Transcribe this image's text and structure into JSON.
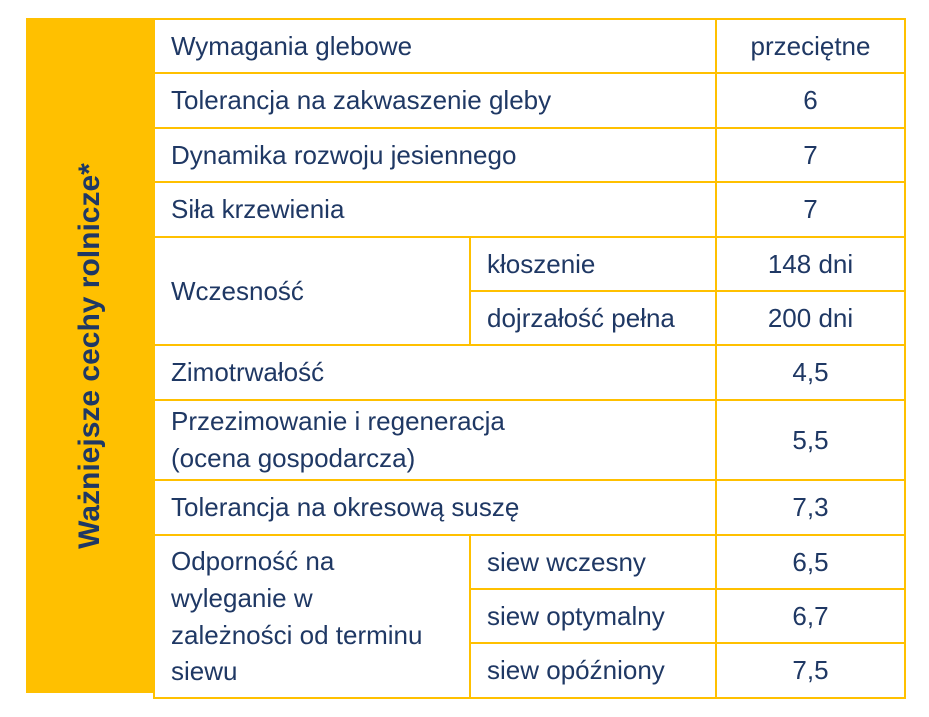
{
  "side_title": "Ważniejsze cechy rolnicze*",
  "rows": {
    "soil": {
      "label": "Wymagania glebowe",
      "value": "przeciętne"
    },
    "acid": {
      "label": "Tolerancja na zakwaszenie gleby",
      "value": "6"
    },
    "autumn": {
      "label": "Dynamika rozwoju jesiennego",
      "value": "7"
    },
    "tiller": {
      "label": "Siła krzewienia",
      "value": "7"
    },
    "earliness": {
      "label": "Wczesność",
      "sub": [
        {
          "label": "kłoszenie",
          "value": "148 dni"
        },
        {
          "label": "dojrzałość pełna",
          "value": "200 dni"
        }
      ]
    },
    "winter": {
      "label": "Zimotrwałość",
      "value": "4,5"
    },
    "overwinter": {
      "label_line1": "Przezimowanie i regeneracja",
      "label_line2": "(ocena gospodarcza)",
      "value": "5,5"
    },
    "drought": {
      "label": "Tolerancja na okresową suszę",
      "value": "7,3"
    },
    "lodging": {
      "label_lines": [
        "Odporność na",
        "wyleganie w",
        "zależności od terminu",
        "siewu"
      ],
      "sub": [
        {
          "label": "siew wczesny",
          "value": "6,5"
        },
        {
          "label": "siew optymalny",
          "value": "6,7"
        },
        {
          "label": "siew opóźniony",
          "value": "7,5"
        }
      ]
    }
  }
}
